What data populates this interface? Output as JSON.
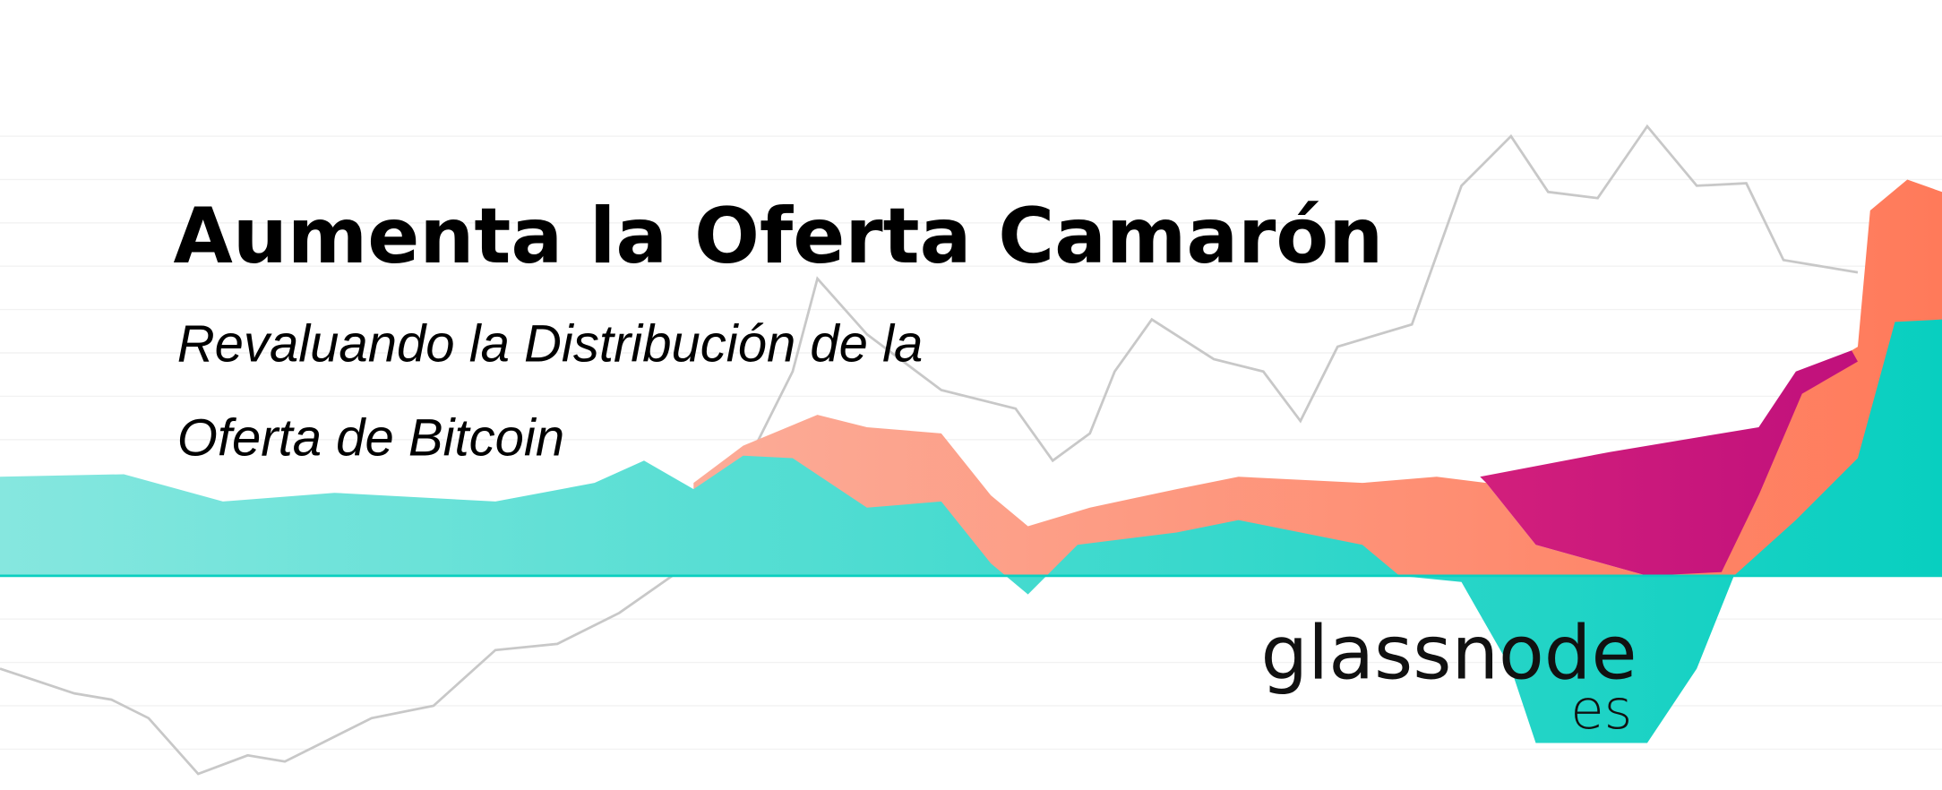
{
  "header": {
    "title": "Aumenta la Oferta Camarón",
    "subtitle_lines": [
      "Revaluando la Distribución de la",
      "Oferta de Bitcoin"
    ]
  },
  "logo": {
    "name": "glassnode",
    "suffix": "es"
  }
}
